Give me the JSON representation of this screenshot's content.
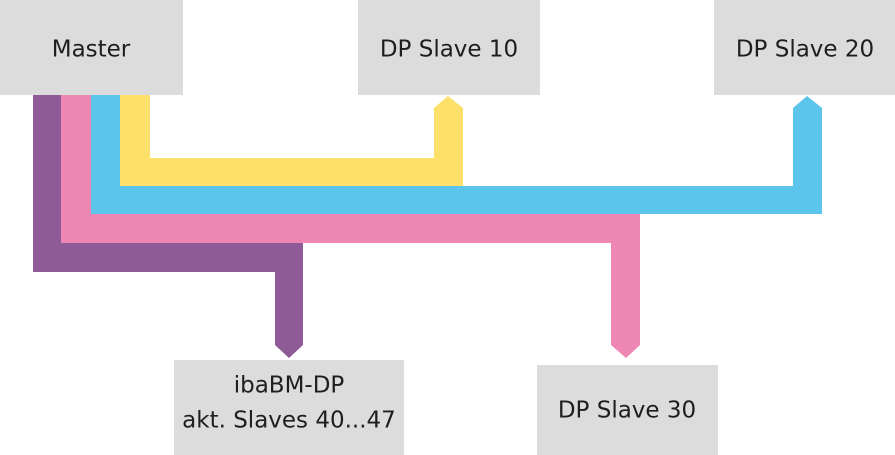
{
  "nodes": [
    {
      "label": "Master"
    },
    {
      "label": "DP Slave 10"
    },
    {
      "label": "DP Slave 20"
    },
    {
      "lines": [
        "ibaBM-DP",
        "akt. Slaves 40...47"
      ]
    },
    {
      "label": "DP Slave 30"
    }
  ]
}
